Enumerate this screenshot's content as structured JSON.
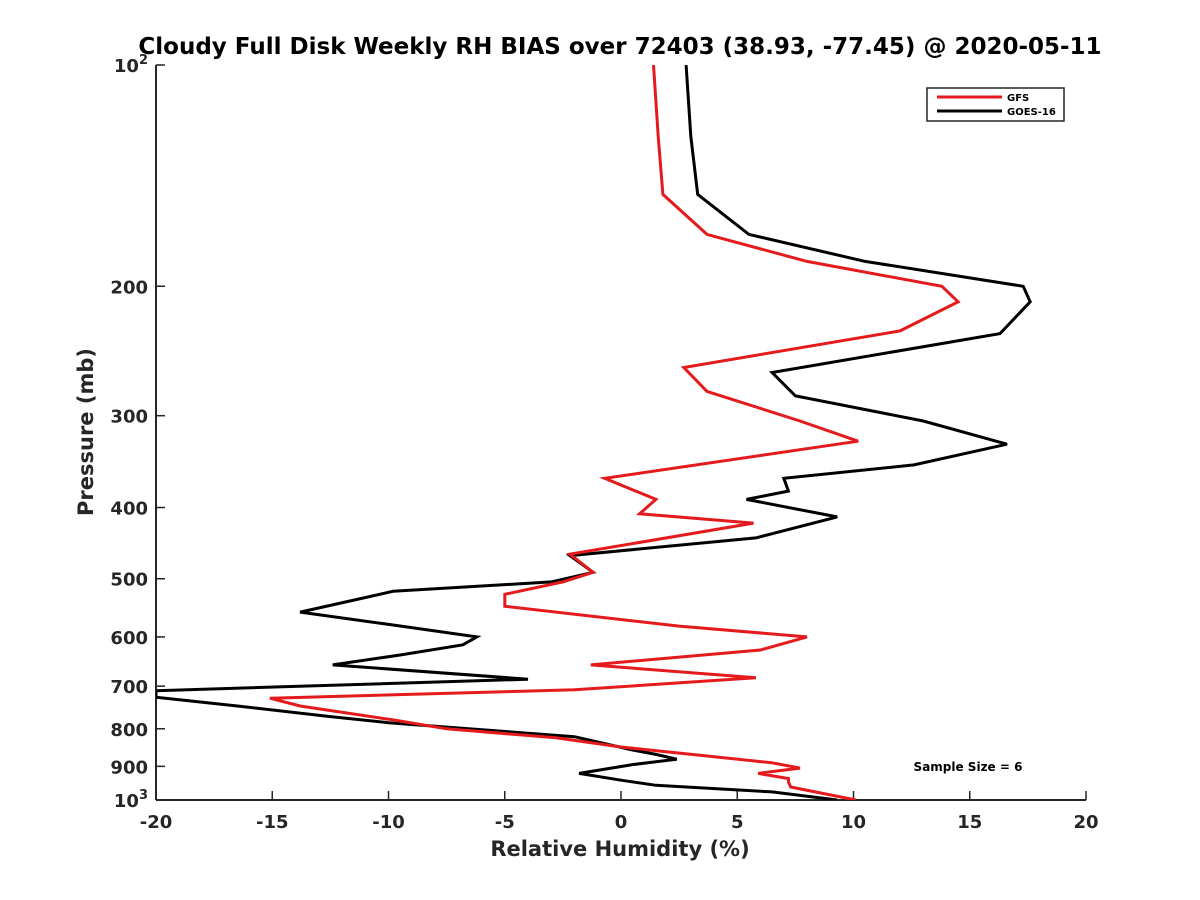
{
  "chart_data": {
    "type": "line",
    "title": "Cloudy Full Disk Weekly RH BIAS over 72403 (38.93, -77.45) @ 2020-05-11",
    "xlabel": "Relative Humidity (%)",
    "ylabel": "Pressure (mb)",
    "xlim": [
      -20,
      20
    ],
    "ylim": [
      100,
      1000
    ],
    "y_scale": "log",
    "y_reversed": true,
    "grid": false,
    "legend_position": "top-right",
    "x_ticks": [
      {
        "value": -20,
        "label": "-20"
      },
      {
        "value": -15,
        "label": "-15"
      },
      {
        "value": -10,
        "label": "-10"
      },
      {
        "value": -5,
        "label": "-5"
      },
      {
        "value": 0,
        "label": "0"
      },
      {
        "value": 5,
        "label": "5"
      },
      {
        "value": 10,
        "label": "10"
      },
      {
        "value": 15,
        "label": "15"
      },
      {
        "value": 20,
        "label": "20"
      }
    ],
    "y_ticks": [
      {
        "value": 100,
        "base": "10",
        "exp": "2"
      },
      {
        "value": 200,
        "base": "200",
        "exp": ""
      },
      {
        "value": 300,
        "base": "300",
        "exp": ""
      },
      {
        "value": 400,
        "base": "400",
        "exp": ""
      },
      {
        "value": 500,
        "base": "500",
        "exp": ""
      },
      {
        "value": 600,
        "base": "600",
        "exp": ""
      },
      {
        "value": 700,
        "base": "700",
        "exp": ""
      },
      {
        "value": 800,
        "base": "800",
        "exp": ""
      },
      {
        "value": 900,
        "base": "900",
        "exp": ""
      },
      {
        "value": 1000,
        "base": "10",
        "exp": "3"
      }
    ],
    "annotation": "Sample Size = 6",
    "series": [
      {
        "name": "GFS",
        "color": "#e41a1c",
        "x": [
          1.4,
          1.6,
          1.8,
          3.7,
          8,
          13.8,
          14.5,
          12,
          2.7,
          3.7,
          7.7,
          10.2,
          -0.7,
          1.5,
          0.8,
          5.7,
          -2.2,
          -1.2,
          -2.5,
          -5,
          -5,
          2.5,
          8,
          6,
          -1.3,
          5.8,
          -2,
          -15.1,
          -13.8,
          -9.8,
          -7.5,
          -2.8,
          0,
          3.5,
          6.5,
          7.7,
          5.9,
          7.2,
          7.2,
          7.3,
          10.1
        ],
        "y": [
          100,
          125,
          150,
          170,
          185,
          200,
          210,
          230,
          258,
          278,
          305,
          325,
          365,
          390,
          408,
          420,
          463,
          490,
          505,
          525,
          545,
          580,
          600,
          625,
          655,
          682,
          708,
          727,
          745,
          778,
          800,
          823,
          847,
          870,
          890,
          905,
          920,
          935,
          945,
          960,
          1000
        ]
      },
      {
        "name": "GOES-16",
        "color": "#000000",
        "x": [
          2.8,
          3,
          3.3,
          5.5,
          10.5,
          17.3,
          17.6,
          16.3,
          6.5,
          7.5,
          13,
          16.6,
          12.6,
          7,
          7.2,
          5.4,
          9.3,
          5.8,
          -2.2,
          -1.2,
          -3,
          -9.8,
          -13.8,
          -9.8,
          -6.2,
          -6.8,
          -9.5,
          -12.4,
          -4,
          -20,
          -20,
          -16.5,
          -12.5,
          -10,
          -2,
          0.5,
          1.5,
          2.4,
          0.5,
          -1.8,
          0,
          1.5,
          6.5,
          9.3
        ],
        "y": [
          100,
          125,
          150,
          170,
          185,
          200,
          210,
          232,
          262,
          282,
          305,
          328,
          350,
          365,
          380,
          390,
          412,
          440,
          465,
          490,
          505,
          520,
          555,
          578,
          600,
          615,
          635,
          655,
          685,
          710,
          725,
          745,
          770,
          785,
          820,
          855,
          867,
          880,
          895,
          920,
          940,
          955,
          975,
          1000
        ]
      }
    ]
  }
}
